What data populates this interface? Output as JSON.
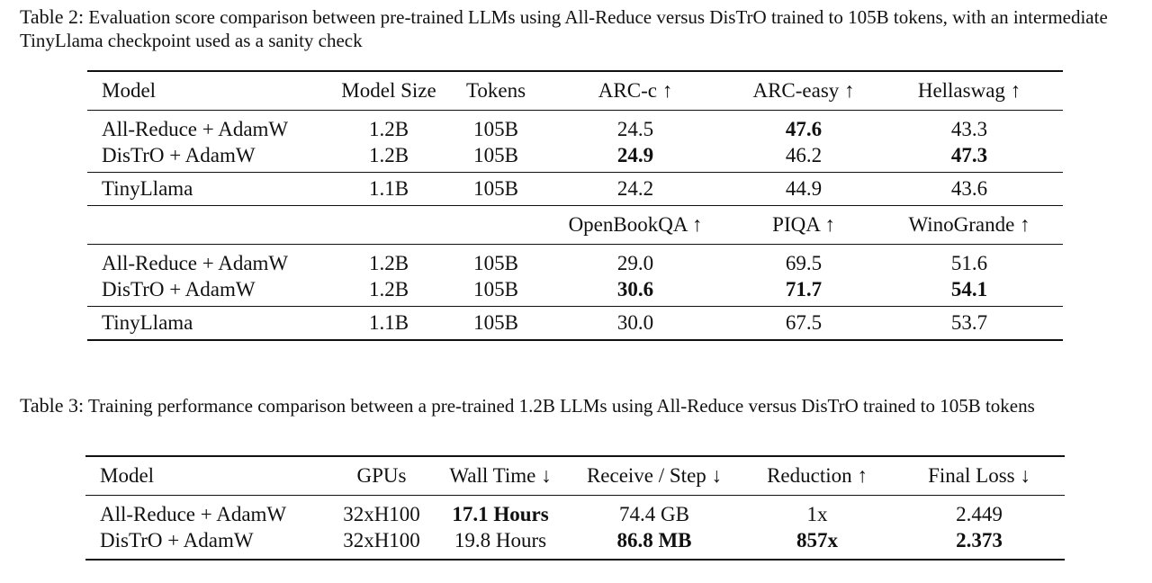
{
  "table2": {
    "caption_label": "Table 2:",
    "caption_text": "Evaluation score comparison between pre-trained LLMs using All-Reduce versus DisTrO trained to 105B tokens, with an intermediate TinyLlama checkpoint used as a sanity check",
    "header1": [
      "Model",
      "Model Size",
      "Tokens",
      "ARC-c ↑",
      "ARC-easy ↑",
      "Hellaswag ↑"
    ],
    "group1": [
      [
        "All-Reduce + AdamW",
        "1.2B",
        "105B",
        "24.5",
        "47.6",
        "43.3"
      ],
      [
        "DisTrO + AdamW",
        "1.2B",
        "105B",
        "24.9",
        "46.2",
        "47.3"
      ]
    ],
    "ref1": [
      "TinyLlama",
      "1.1B",
      "105B",
      "24.2",
      "44.9",
      "43.6"
    ],
    "header2": [
      "",
      "",
      "",
      "OpenBookQA ↑",
      "PIQA ↑",
      "WinoGrande ↑"
    ],
    "group2": [
      [
        "All-Reduce + AdamW",
        "1.2B",
        "105B",
        "29.0",
        "69.5",
        "51.6"
      ],
      [
        "DisTrO + AdamW",
        "1.2B",
        "105B",
        "30.6",
        "71.7",
        "54.1"
      ]
    ],
    "ref2": [
      "TinyLlama",
      "1.1B",
      "105B",
      "30.0",
      "67.5",
      "53.7"
    ]
  },
  "table3": {
    "caption_label": "Table 3:",
    "caption_text": "Training performance comparison between a pre-trained 1.2B LLMs using All-Reduce versus DisTrO trained to 105B tokens",
    "header": [
      "Model",
      "GPUs",
      "Wall Time ↓",
      "Receive / Step ↓",
      "Reduction ↑",
      "Final Loss ↓"
    ],
    "rows": [
      [
        "All-Reduce + AdamW",
        "32xH100",
        "17.1 Hours",
        "74.4 GB",
        "1x",
        "2.449"
      ],
      [
        "DisTrO + AdamW",
        "32xH100",
        "19.8 Hours",
        "86.8 MB",
        "857x",
        "2.373"
      ]
    ]
  }
}
